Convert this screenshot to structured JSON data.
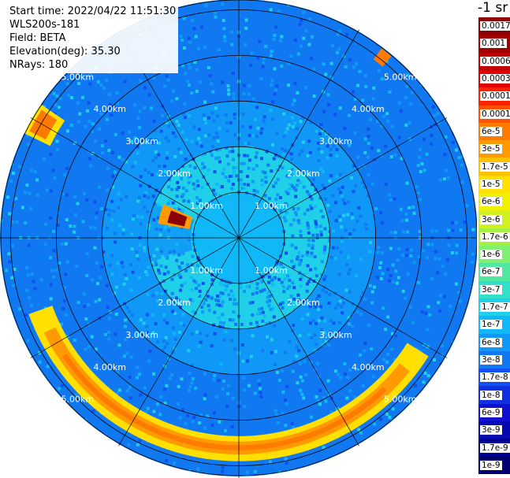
{
  "info": {
    "start_time": "Start time: 2022/04/22 11:51:30",
    "instrument": "WLS200s-181",
    "field": "Field: BETA",
    "elevation": "Elevation(deg): 35.30",
    "nrays": "NRays: 180"
  },
  "colorbar": {
    "title": "-1 sr",
    "scale": "log",
    "labels": [
      "0.0017",
      "0.001",
      "0.0006",
      "0.0003",
      "0.00017",
      "0.0001",
      "6e-5",
      "3e-5",
      "1.7e-5",
      "1e-5",
      "6e-6",
      "3e-6",
      "1.7e-6",
      "1e-6",
      "6e-7",
      "3e-7",
      "1.7e-7",
      "1e-7",
      "6e-8",
      "3e-8",
      "1.7e-8",
      "1e-8",
      "6e-9",
      "3e-9",
      "1.7e-9",
      "1e-9"
    ],
    "colors": [
      "#8b0000",
      "#a00000",
      "#c00000",
      "#e00000",
      "#ff2000",
      "#ff5000",
      "#ff7a00",
      "#ff9a00",
      "#ffc000",
      "#ffe000",
      "#f0f000",
      "#d0f020",
      "#a8f040",
      "#80f070",
      "#50e8a0",
      "#30e0c8",
      "#20d0e8",
      "#10b8f8",
      "#1098f8",
      "#1078f0",
      "#1050f0",
      "#1030e0",
      "#1010d0",
      "#0808b0",
      "#000090",
      "#000070"
    ]
  },
  "chart_data": {
    "type": "heatmap",
    "projection": "polar PPI",
    "field": "BETA",
    "unit": "-1 sr",
    "color_scale": "log",
    "range_rings_km": [
      1.0,
      2.0,
      3.0,
      4.0,
      5.0
    ],
    "ring_labels": [
      "1.00km",
      "2.00km",
      "3.00km",
      "4.00km",
      "5.00km"
    ],
    "max_range_km": 5.6,
    "radials_deg": [
      0,
      30,
      60,
      90,
      120,
      150,
      180,
      210,
      240,
      270,
      300,
      330
    ],
    "background_levels": [
      {
        "range_km": [
          0.0,
          1.0
        ],
        "level": "1e-7"
      },
      {
        "range_km": [
          1.0,
          2.0
        ],
        "level": "1.7e-7"
      },
      {
        "range_km": [
          2.0,
          3.0
        ],
        "level": "6e-8"
      },
      {
        "range_km": [
          3.0,
          5.6
        ],
        "level": "3e-8"
      }
    ],
    "features": [
      {
        "name": "arc",
        "azimuth_deg": [
          122,
          250
        ],
        "range_km": [
          4.35,
          4.9
        ],
        "peak": "6e-5"
      },
      {
        "name": "west band",
        "azimuth_deg": [
          280,
          294
        ],
        "range_km": [
          1.1,
          1.8
        ],
        "peak": "1e-4"
      },
      {
        "name": "far west cluster",
        "azimuth_deg": [
          296,
          304
        ],
        "range_km": [
          4.6,
          5.3
        ],
        "peak": "6e-5"
      },
      {
        "name": "north-east cluster",
        "azimuth_deg": [
          37,
          40
        ],
        "range_km": [
          4.9,
          5.2
        ],
        "peak": "6e-5"
      }
    ]
  }
}
